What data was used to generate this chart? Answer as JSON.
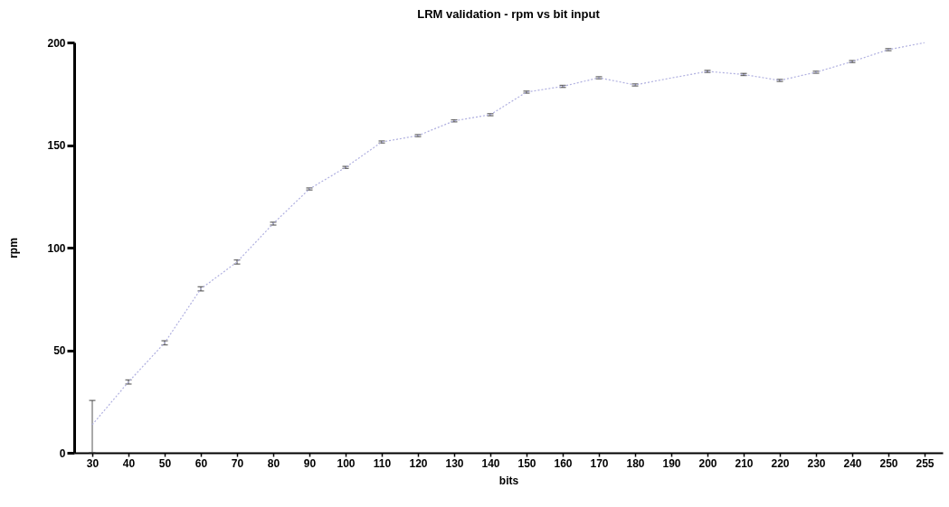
{
  "chart_data": {
    "type": "line",
    "title": "LRM validation - rpm vs bit input",
    "xlabel": "bits",
    "ylabel": "rpm",
    "categories": [
      "30",
      "40",
      "50",
      "60",
      "70",
      "80",
      "90",
      "100",
      "110",
      "120",
      "130",
      "140",
      "150",
      "160",
      "170",
      "180",
      "190",
      "200",
      "210",
      "220",
      "230",
      "240",
      "250",
      "255"
    ],
    "series": [
      {
        "color": "#b0b0e0",
        "values": [
          13.7,
          34.5,
          53.6,
          79.9,
          93,
          111.7,
          128.6,
          139.1,
          151.5,
          154.6,
          161.8,
          164.8,
          175.8,
          178.6,
          182.8,
          179.3,
          182.7,
          185.9,
          184.4,
          181.5,
          185.5,
          190.7,
          196.5,
          199.9
        ],
        "errors": [
          [
            0,
            25.5
          ],
          1,
          1,
          1,
          1,
          0.7,
          0.5,
          0.5,
          0.5,
          0.5,
          0.5,
          0.5,
          0.5,
          0.5,
          0.5,
          0.5,
          null,
          0.5,
          0.5,
          0.5,
          0.5,
          0.5,
          0.5,
          null
        ]
      }
    ],
    "ylim": [
      0,
      200
    ],
    "yticks": [
      0,
      50,
      100,
      150,
      200
    ],
    "grid": false,
    "marker": "none",
    "line_style": "dotted"
  }
}
